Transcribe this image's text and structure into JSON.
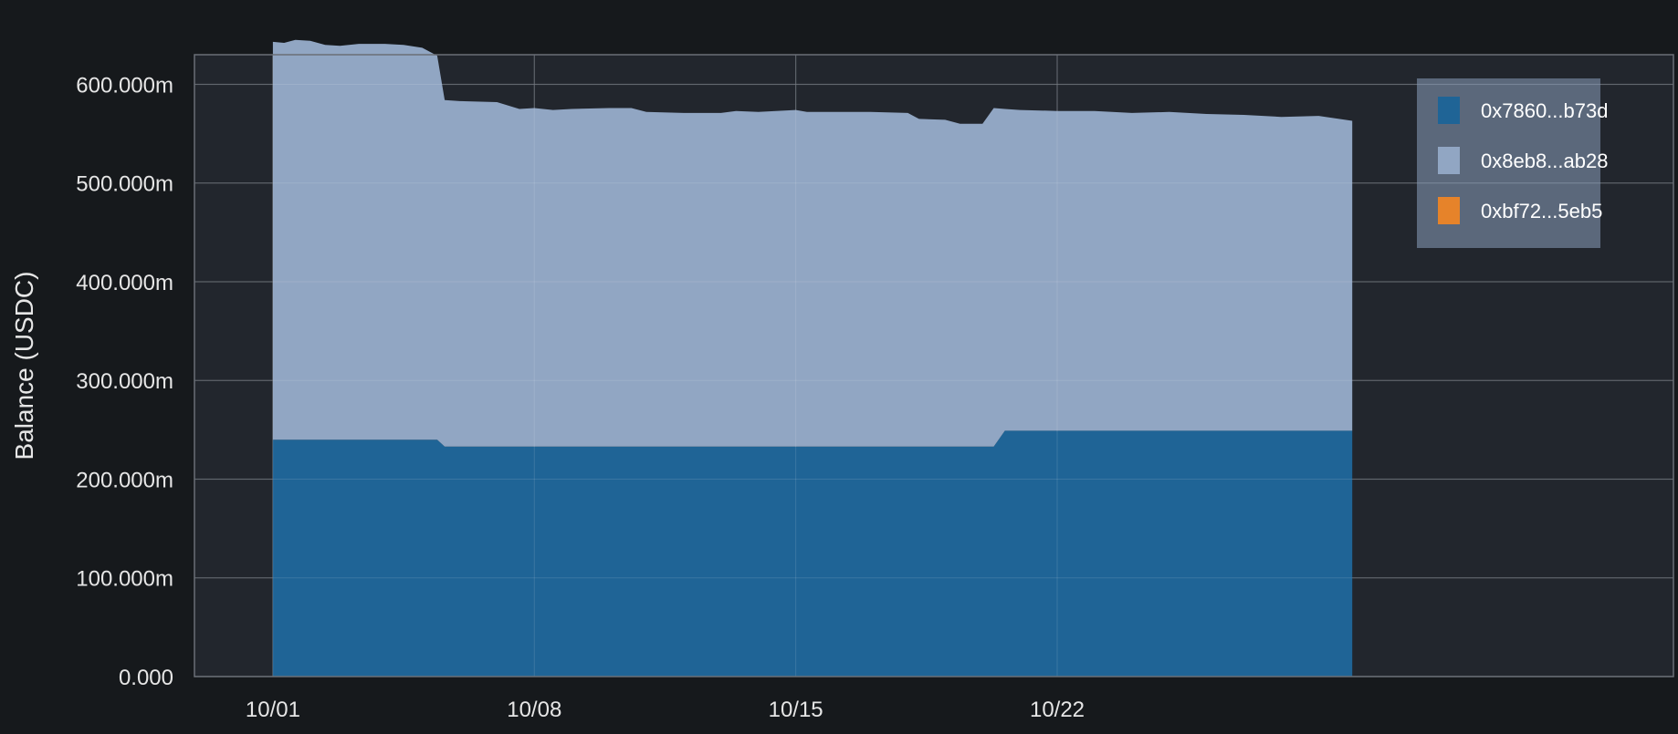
{
  "chart_data": {
    "type": "area",
    "stacked": true,
    "title": "",
    "xlabel": "",
    "ylabel": "Balance (USDC)",
    "ylim": [
      0,
      630
    ],
    "y_ticks": [
      0,
      100,
      200,
      300,
      400,
      500,
      600
    ],
    "y_tick_labels": [
      "0.000",
      "100.000m",
      "200.000m",
      "300.000m",
      "400.000m",
      "500.000m",
      "600.000m"
    ],
    "xlim": [
      -2.1,
      37.5
    ],
    "x_ticks": [
      0,
      7,
      14,
      21
    ],
    "x_tick_labels": [
      "10/01",
      "10/08",
      "10/15",
      "10/22"
    ],
    "grid": true,
    "legend_position": "top-right",
    "x": [
      0,
      0.3,
      0.6,
      1,
      1.4,
      1.8,
      2.3,
      3,
      3.5,
      4,
      4.4,
      4.6,
      5,
      6,
      6.6,
      7,
      7.5,
      8,
      9,
      9.6,
      10,
      11,
      12,
      12.4,
      13,
      14,
      14.3,
      15,
      16,
      17,
      17.3,
      18,
      18.4,
      19,
      19.3,
      19.6,
      20,
      21,
      22,
      23,
      24,
      25,
      26,
      27,
      28,
      28.9
    ],
    "series": [
      {
        "name": "0x7860...b73d",
        "color": "#1f6496",
        "values": [
          240,
          240,
          240,
          240,
          240,
          240,
          240,
          240,
          240,
          240,
          240,
          233,
          233,
          233,
          233,
          233,
          233,
          233,
          233,
          233,
          233,
          233,
          233,
          233,
          233,
          233,
          233,
          233,
          233,
          233,
          233,
          233,
          233,
          233,
          233,
          249,
          249,
          249,
          249,
          249,
          249,
          249,
          249,
          249,
          249,
          249
        ]
      },
      {
        "name": "0x8eb8...ab28",
        "color": "#91a6c3",
        "values": [
          403,
          402,
          405,
          404,
          400,
          399,
          401,
          401,
          400,
          397,
          389,
          351,
          350,
          349,
          342,
          343,
          341,
          342,
          343,
          343,
          339,
          338,
          338,
          340,
          339,
          341,
          339,
          339,
          339,
          338,
          332,
          331,
          327,
          327,
          343,
          326,
          325,
          324,
          324,
          322,
          323,
          321,
          320,
          318,
          319,
          314
        ]
      },
      {
        "name": "0xbf72...5eb5",
        "color": "#e6832a",
        "values": [
          0,
          0,
          0,
          0,
          0,
          0,
          0,
          0,
          0,
          0,
          0,
          0,
          0,
          0,
          0,
          0,
          0,
          0,
          0,
          0,
          0,
          0,
          0,
          0,
          0,
          0,
          0,
          0,
          0,
          0,
          0,
          0,
          0,
          0,
          0,
          0,
          0,
          0,
          0,
          0,
          0,
          0,
          0,
          0,
          0,
          0
        ]
      }
    ]
  }
}
